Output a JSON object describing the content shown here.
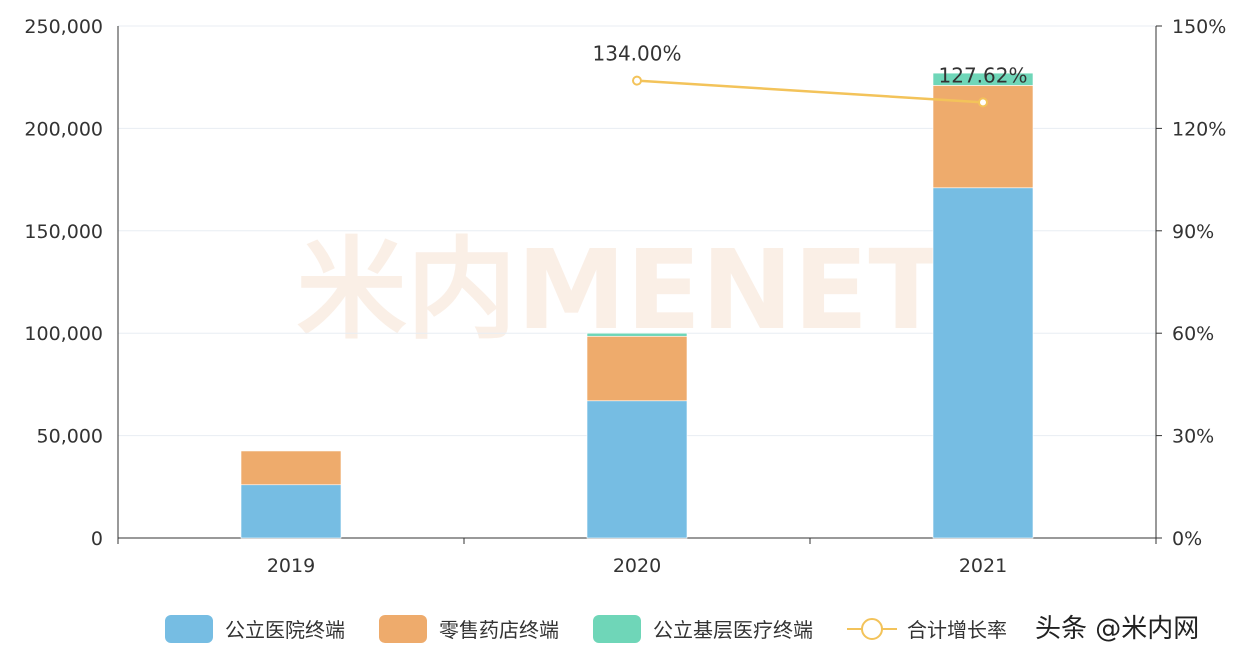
{
  "chart_data": {
    "type": "bar",
    "stacked": true,
    "categories": [
      "2019",
      "2020",
      "2021"
    ],
    "series": [
      {
        "name": "公立医院终端",
        "type": "bar",
        "axis": "left",
        "color": "#76bde3",
        "values": [
          26000,
          67000,
          171000
        ]
      },
      {
        "name": "零售药店终端",
        "type": "bar",
        "axis": "left",
        "color": "#eeab6c",
        "values": [
          16500,
          31500,
          50000
        ]
      },
      {
        "name": "公立基层医疗终端",
        "type": "bar",
        "axis": "left",
        "color": "#6fd6b8",
        "values": [
          0,
          1500,
          6000
        ]
      },
      {
        "name": "合计增长率",
        "type": "line",
        "axis": "right",
        "color": "#f3c35a",
        "values": [
          null,
          134.0,
          127.62
        ],
        "labels": [
          "",
          "134.00%",
          "127.62%"
        ]
      }
    ],
    "left_axis": {
      "range": [
        0,
        250000
      ],
      "ticks": [
        "0",
        "50,000",
        "100,000",
        "150,000",
        "200,000",
        "250,000"
      ]
    },
    "right_axis": {
      "range": [
        0,
        150
      ],
      "ticks": [
        "0%",
        "30%",
        "60%",
        "90%",
        "120%",
        "150%"
      ]
    },
    "grid": true,
    "legend_position": "bottom"
  },
  "watermark": {
    "center": "米内MENET",
    "corner": "头条 @米内网"
  }
}
